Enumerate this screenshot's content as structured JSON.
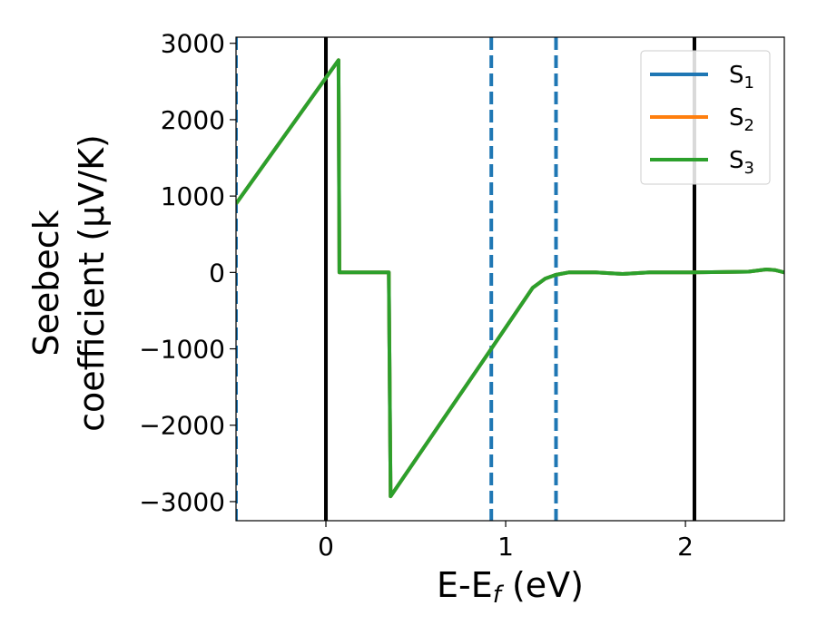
{
  "chart_data": {
    "type": "line",
    "xlabel": "E-E",
    "xlabel_sub": "f",
    "xlabel_unit": " (eV)",
    "ylabel_line1": "Seebeck",
    "ylabel_line2": "coefficient  (μV/K)",
    "xlim": [
      -0.5,
      2.55
    ],
    "ylim": [
      -3250,
      3080
    ],
    "xticks": [
      0,
      1,
      2
    ],
    "xtick_labels": [
      "0",
      "1",
      "2"
    ],
    "yticks": [
      3000,
      2000,
      1000,
      0,
      -1000,
      -2000,
      -3000
    ],
    "ytick_labels": [
      "3000",
      "2000",
      "1000",
      "0",
      "−1000",
      "−2000",
      "−3000"
    ],
    "vlines": [
      {
        "x": 0.0,
        "style": "solid",
        "color": "#000000"
      },
      {
        "x": 2.05,
        "style": "solid",
        "color": "#000000"
      },
      {
        "x": 0.92,
        "style": "dashed",
        "color": "#1f77b4"
      },
      {
        "x": 1.28,
        "style": "dashed",
        "color": "#1f77b4"
      },
      {
        "x": -0.5,
        "style": "dashed",
        "color": "#1f77b4"
      }
    ],
    "legend_position": "top-right",
    "series": [
      {
        "name": "S",
        "sub": "1",
        "color": "#1f77b4",
        "x": [
          -0.5,
          0.07,
          0.075,
          0.35,
          0.36,
          0.92,
          1.15,
          1.22,
          1.28,
          1.35,
          1.5,
          1.65,
          1.8,
          2.0,
          2.2,
          2.35,
          2.45,
          2.5,
          2.55
        ],
        "y": [
          900,
          2780,
          0,
          0,
          -2930,
          -1000,
          -200,
          -80,
          -30,
          0,
          0,
          -20,
          0,
          0,
          5,
          10,
          40,
          30,
          0
        ]
      },
      {
        "name": "S",
        "sub": "2",
        "color": "#ff7f0e",
        "x": [
          -0.5,
          0.07,
          0.075,
          0.35,
          0.36,
          0.92,
          1.15,
          1.22,
          1.28,
          1.35,
          1.5,
          1.65,
          1.8,
          2.0,
          2.2,
          2.35,
          2.45,
          2.5,
          2.55
        ],
        "y": [
          900,
          2780,
          0,
          0,
          -2930,
          -1000,
          -200,
          -80,
          -30,
          0,
          0,
          -20,
          0,
          0,
          5,
          10,
          40,
          30,
          0
        ]
      },
      {
        "name": "S",
        "sub": "3",
        "color": "#2ca02c",
        "x": [
          -0.5,
          0.07,
          0.075,
          0.35,
          0.36,
          0.92,
          1.15,
          1.22,
          1.28,
          1.35,
          1.5,
          1.65,
          1.8,
          2.0,
          2.2,
          2.35,
          2.45,
          2.5,
          2.55
        ],
        "y": [
          900,
          2780,
          0,
          0,
          -2930,
          -1000,
          -200,
          -80,
          -30,
          0,
          0,
          -20,
          0,
          0,
          5,
          10,
          40,
          30,
          0
        ]
      }
    ]
  }
}
